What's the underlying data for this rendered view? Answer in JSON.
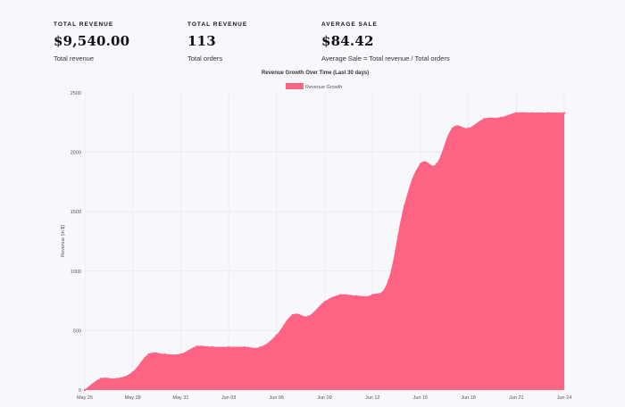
{
  "stats": [
    {
      "title": "TOTAL REVENUE",
      "value": "$9,540.00",
      "desc": "Total revenue"
    },
    {
      "title": "TOTAL REVENUE",
      "value": "113",
      "desc": "Total orders"
    },
    {
      "title": "AVERAGE SALE",
      "value": "$84.42",
      "desc": "Average Sale = Total revenue / Total orders"
    }
  ],
  "colors": {
    "series": "#ff6384",
    "grid": "#e6e6ec",
    "axis_text": "#555555"
  },
  "chart_data": {
    "type": "area",
    "title": "Revenue Growth Over Time (Last 30 days)",
    "xlabel": "",
    "ylabel": "Revenue (in $)",
    "ylim": [
      0,
      2500
    ],
    "yticks": [
      0,
      500,
      1000,
      1500,
      2000,
      2500
    ],
    "grid": true,
    "legend": "top",
    "x_tick_labels": [
      "May 25",
      "May 28",
      "May 31",
      "Jun 03",
      "Jun 06",
      "Jun 09",
      "Jun 12",
      "Jun 15",
      "Jun 18",
      "Jun 21",
      "Jun 24"
    ],
    "x": [
      "May 25",
      "May 26",
      "May 27",
      "May 28",
      "May 29",
      "May 30",
      "May 31",
      "Jun 01",
      "Jun 02",
      "Jun 03",
      "Jun 04",
      "Jun 05",
      "Jun 06",
      "Jun 07",
      "Jun 08",
      "Jun 09",
      "Jun 10",
      "Jun 11",
      "Jun 12",
      "Jun 13",
      "Jun 14",
      "Jun 15",
      "Jun 16",
      "Jun 17",
      "Jun 18",
      "Jun 19",
      "Jun 20",
      "Jun 21",
      "Jun 22",
      "Jun 23",
      "Jun 24"
    ],
    "series": [
      {
        "name": "Revenue Growth",
        "values": [
          0,
          95,
          95,
          150,
          300,
          300,
          300,
          365,
          360,
          360,
          360,
          360,
          460,
          630,
          620,
          740,
          800,
          790,
          800,
          920,
          1550,
          1900,
          1900,
          2200,
          2200,
          2280,
          2290,
          2330,
          2330,
          2330,
          2330
        ]
      }
    ]
  }
}
